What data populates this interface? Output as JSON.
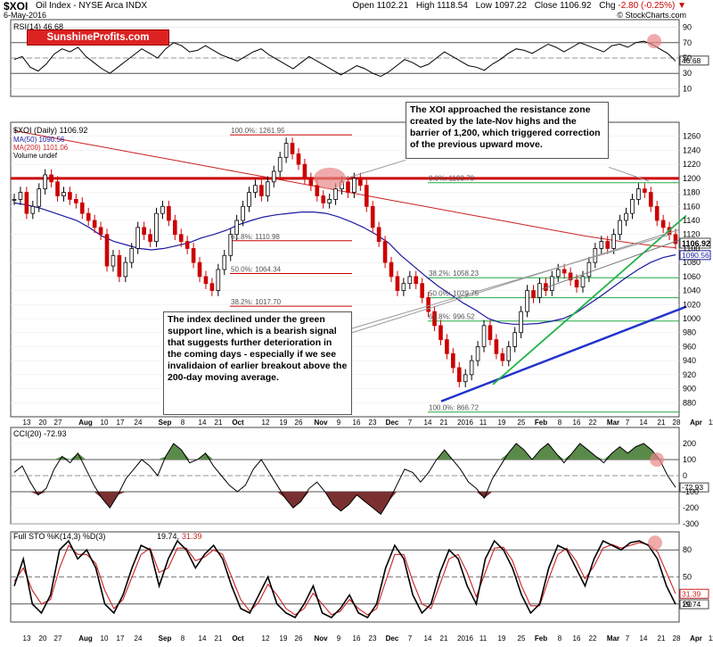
{
  "header": {
    "symbol": "$XOI",
    "name": "Oil Index - NYSE Arca INDX",
    "date": "6-May-2016",
    "open_label": "Open",
    "open": "1102.21",
    "high_label": "High",
    "high": "1118.54",
    "low_label": "Low",
    "low": "1097.22",
    "close_label": "Close",
    "close": "1106.92",
    "chg_label": "Chg",
    "chg": "-2.80 (-0.25%)",
    "watermark": "© StockCharts.com"
  },
  "brand": "SunshineProfits.com",
  "colors": {
    "price_up": "#000000",
    "price_down": "#cc0000",
    "ma50": "#1a1aa0",
    "ma200": "#cc2222",
    "resistance": "#cc0000",
    "uptrend": "#22b24a",
    "support": "#2233cc",
    "fib": "#22aa44",
    "cci_fill_pos": "#5a8a4a",
    "cci_fill_neg": "#7a3030",
    "highlight": "#e88888"
  },
  "annotations": {
    "top": "The XOI approached the resistance zone created by the late-Nov highs and the barrier of 1,200, which triggered correction of the previous upward move.",
    "bottom": "The index declined under the green support line, which is a bearish signal that suggests further deterioration in the coming days - especially if we see invalidaion of earlier breakout above the 200-day moving average."
  },
  "chart_data": [
    {
      "type": "line",
      "panel": "RSI",
      "title": "RSI(14) 46.68",
      "ylim": [
        0,
        100
      ],
      "y_ticks": [
        10,
        30,
        50,
        70,
        90
      ],
      "current_value": "46.68",
      "series": [
        {
          "name": "RSI(14)",
          "values": [
            48,
            52,
            38,
            33,
            42,
            55,
            62,
            58,
            64,
            52,
            44,
            36,
            30,
            38,
            46,
            54,
            62,
            56,
            50,
            62,
            70,
            66,
            58,
            60,
            66,
            60,
            54,
            50,
            46,
            52,
            58,
            62,
            54,
            48,
            42,
            36,
            44,
            52,
            46,
            40,
            34,
            28,
            34,
            40,
            36,
            30,
            26,
            32,
            40,
            48,
            44,
            38,
            42,
            50,
            58,
            52,
            46,
            40,
            38,
            34,
            42,
            48,
            56,
            62,
            60,
            56,
            62,
            68,
            64,
            58,
            64,
            70,
            66,
            62,
            58,
            66,
            68,
            64,
            70,
            72,
            68,
            62,
            56,
            46
          ]
        }
      ]
    },
    {
      "type": "line",
      "panel": "Price",
      "title": "$XOI (Daily) 1106.92",
      "legend": [
        "MA(50) 1090.56",
        "MA(200) 1101.06",
        "Volume undef"
      ],
      "ylim": [
        860,
        1280
      ],
      "y_ticks": [
        880,
        900,
        920,
        940,
        960,
        980,
        1000,
        1020,
        1040,
        1060,
        1080,
        1100,
        1120,
        1140,
        1160,
        1180,
        1200,
        1220,
        1240,
        1260
      ],
      "x_ticks": [
        "13",
        "20",
        "27",
        "Aug",
        "10",
        "17",
        "24",
        "Sep",
        "8",
        "14",
        "21",
        "Oct",
        "12",
        "19",
        "26",
        "Nov",
        "9",
        "16",
        "23",
        "Dec",
        "7",
        "14",
        "21",
        "2016",
        "11",
        "19",
        "25",
        "Feb",
        "8",
        "16",
        "22",
        "Mar",
        "7",
        "14",
        "21",
        "28",
        "Apr",
        "11",
        "18",
        "25",
        "May"
      ],
      "x_tick_label_x": [
        30,
        48,
        65,
        96,
        117,
        135,
        155,
        185,
        205,
        227,
        245,
        267,
        298,
        318,
        335,
        360,
        380,
        400,
        418,
        440,
        460,
        480,
        498,
        522,
        542,
        563,
        585,
        607,
        628,
        647,
        665,
        688,
        704,
        722,
        742,
        759,
        781,
        799,
        819,
        838,
        862
      ],
      "close": [
        1170,
        1180,
        1150,
        1160,
        1185,
        1205,
        1195,
        1175,
        1180,
        1170,
        1165,
        1150,
        1140,
        1130,
        1120,
        1075,
        1090,
        1060,
        1080,
        1100,
        1130,
        1120,
        1110,
        1150,
        1160,
        1140,
        1120,
        1110,
        1100,
        1080,
        1060,
        1050,
        1040,
        1070,
        1090,
        1120,
        1140,
        1160,
        1180,
        1190,
        1175,
        1195,
        1210,
        1230,
        1250,
        1235,
        1220,
        1200,
        1190,
        1175,
        1165,
        1170,
        1185,
        1195,
        1180,
        1200,
        1190,
        1160,
        1130,
        1110,
        1080,
        1060,
        1040,
        1050,
        1060,
        1050,
        1030,
        1010,
        990,
        970,
        950,
        930,
        910,
        920,
        940,
        960,
        990,
        970,
        950,
        940,
        960,
        980,
        1010,
        1040,
        1030,
        1050,
        1040,
        1060,
        1070,
        1065,
        1055,
        1045,
        1060,
        1080,
        1100,
        1110,
        1100,
        1120,
        1140,
        1150,
        1170,
        1185,
        1180,
        1160,
        1140,
        1130,
        1120,
        1107
      ],
      "ma50_values": [
        1165,
        1162,
        1158,
        1152,
        1146,
        1140,
        1130,
        1118,
        1110,
        1105,
        1100,
        1098,
        1100,
        1104,
        1108,
        1115,
        1120,
        1126,
        1134,
        1140,
        1145,
        1148,
        1150,
        1152,
        1152,
        1150,
        1145,
        1138,
        1130,
        1120,
        1108,
        1090,
        1075,
        1060,
        1046,
        1034,
        1022,
        1012,
        1000,
        994,
        992,
        992,
        993,
        996,
        1000,
        1008,
        1020,
        1032,
        1045,
        1058,
        1070,
        1080,
        1087,
        1091
      ],
      "ma200_values": [
        1268,
        1262,
        1256,
        1250,
        1244,
        1238,
        1232,
        1226,
        1220,
        1214,
        1208,
        1202,
        1196,
        1190,
        1184,
        1178,
        1172,
        1166,
        1160,
        1154,
        1148,
        1142,
        1136,
        1130,
        1124,
        1118,
        1113,
        1108,
        1104,
        1101
      ],
      "resistance_level": 1200,
      "fib_levels": [
        {
          "label": "100.0%: 1261.95",
          "value": 1261.95
        },
        {
          "label": "61.8%: 1110.98",
          "value": 1110.98
        },
        {
          "label": "50.0%: 1064.34",
          "value": 1064.34
        },
        {
          "label": "38.2%: 1017.70",
          "value": 1017.7
        },
        {
          "label": "0.0%: 1193.78",
          "value": 1193.78
        },
        {
          "label": "38.2%: 1058.23",
          "value": 1058.23
        },
        {
          "label": "50.0%: 1029.75",
          "value": 1029.75
        },
        {
          "label": "61.8%: 996.52",
          "value": 996.52
        },
        {
          "label": "100.0%: 866.72",
          "value": 866.72
        }
      ],
      "close_tag": "1106.92",
      "ma_tag": "1090.56"
    },
    {
      "type": "area",
      "panel": "CCI",
      "title": "CCI(20) -72.93",
      "ylim": [
        -300,
        300
      ],
      "y_ticks": [
        -300,
        -200,
        -100,
        0,
        100,
        200
      ],
      "current_value": "-72.93",
      "series": [
        {
          "name": "CCI(20)",
          "values": [
            20,
            60,
            -40,
            -120,
            -80,
            40,
            120,
            80,
            140,
            40,
            -60,
            -140,
            -200,
            -120,
            -20,
            40,
            100,
            60,
            0,
            120,
            200,
            160,
            80,
            100,
            140,
            60,
            0,
            -60,
            -100,
            -60,
            40,
            100,
            20,
            -60,
            -140,
            -200,
            -160,
            -80,
            -40,
            -100,
            -180,
            -220,
            -180,
            -120,
            -160,
            -200,
            -240,
            -160,
            -60,
            40,
            20,
            -40,
            20,
            100,
            160,
            100,
            40,
            -40,
            -80,
            -140,
            -20,
            60,
            140,
            200,
            160,
            100,
            160,
            200,
            140,
            80,
            140,
            200,
            160,
            120,
            80,
            140,
            180,
            140,
            180,
            200,
            160,
            100,
            0,
            -73
          ]
        }
      ]
    },
    {
      "type": "line",
      "panel": "STO",
      "title": "Full STO %K(14,3) %D(3) 19.74, 31.39",
      "ylim": [
        0,
        100
      ],
      "y_ticks": [
        20,
        50,
        80
      ],
      "series": [
        {
          "name": "%K",
          "values": [
            40,
            70,
            20,
            10,
            30,
            80,
            90,
            70,
            80,
            60,
            20,
            10,
            30,
            60,
            85,
            80,
            40,
            70,
            90,
            80,
            60,
            75,
            85,
            70,
            40,
            15,
            10,
            30,
            50,
            20,
            10,
            5,
            20,
            40,
            10,
            5,
            15,
            30,
            10,
            5,
            20,
            60,
            85,
            70,
            30,
            10,
            20,
            55,
            80,
            70,
            40,
            20,
            70,
            90,
            80,
            60,
            30,
            10,
            20,
            60,
            85,
            80,
            60,
            40,
            70,
            90,
            85,
            80,
            88,
            90,
            85,
            70,
            40,
            19.74
          ]
        },
        {
          "name": "%D",
          "values": [
            45,
            60,
            35,
            20,
            25,
            60,
            85,
            75,
            75,
            65,
            35,
            15,
            25,
            50,
            75,
            82,
            55,
            60,
            82,
            82,
            68,
            72,
            80,
            75,
            50,
            25,
            12,
            22,
            42,
            30,
            15,
            8,
            15,
            32,
            20,
            8,
            12,
            25,
            15,
            8,
            15,
            45,
            75,
            75,
            45,
            20,
            15,
            42,
            70,
            75,
            55,
            28,
            55,
            82,
            83,
            68,
            40,
            18,
            18,
            48,
            75,
            82,
            68,
            48,
            62,
            82,
            86,
            82,
            85,
            88,
            86,
            78,
            55,
            31.39
          ]
        }
      ],
      "current_values": [
        "31.39",
        "19.74"
      ]
    }
  ]
}
